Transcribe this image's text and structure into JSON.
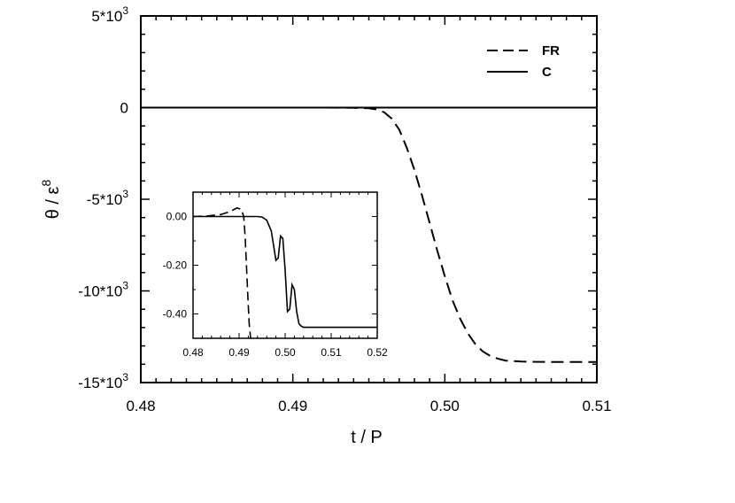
{
  "chart_data": [
    {
      "type": "line",
      "xlabel": "t / P",
      "ylabel": "θ / ε^8",
      "xlim": [
        0.48,
        0.51
      ],
      "ylim": [
        -15000,
        5000
      ],
      "x_ticks": [
        "0.48",
        "0.49",
        "0.50",
        "0.51"
      ],
      "y_ticks": [
        {
          "value": 5000,
          "base": "5*10",
          "exp": "3"
        },
        {
          "value": 0,
          "base": "0",
          "exp": ""
        },
        {
          "value": -5000,
          "base": "-5*10",
          "exp": "3"
        },
        {
          "value": -10000,
          "base": "-10*10",
          "exp": "3"
        },
        {
          "value": -15000,
          "base": "-15*10",
          "exp": "3"
        }
      ],
      "legend": "top-right",
      "series": [
        {
          "name": "FR",
          "style": "dashed",
          "x": [
            0.48,
            0.492,
            0.494,
            0.495,
            0.4955,
            0.496,
            0.4965,
            0.497,
            0.4975,
            0.498,
            0.4985,
            0.499,
            0.4995,
            0.5,
            0.5005,
            0.501,
            0.5015,
            0.502,
            0.5025,
            0.503,
            0.5035,
            0.504,
            0.505,
            0.506,
            0.508,
            0.51
          ],
          "y": [
            0,
            0,
            -10,
            -40,
            -100,
            -250,
            -600,
            -1200,
            -2200,
            -3400,
            -4800,
            -6300,
            -7800,
            -9200,
            -10500,
            -11500,
            -12300,
            -12900,
            -13300,
            -13550,
            -13700,
            -13800,
            -13850,
            -13870,
            -13880,
            -13880
          ]
        },
        {
          "name": "C",
          "style": "solid",
          "x": [
            0.48,
            0.51
          ],
          "y": [
            0,
            0
          ]
        }
      ]
    },
    {
      "type": "line",
      "inset": true,
      "xlim": [
        0.48,
        0.52
      ],
      "ylim": [
        -0.5,
        0.1
      ],
      "x_ticks": [
        "0.48",
        "0.49",
        "0.50",
        "0.51",
        "0.52"
      ],
      "y_ticks": [
        "0.00",
        "-0.20",
        "-0.40"
      ],
      "series": [
        {
          "name": "FR",
          "style": "dashed",
          "x": [
            0.48,
            0.483,
            0.486,
            0.488,
            0.4895,
            0.4905,
            0.491,
            0.4913,
            0.4916,
            0.4919,
            0.4922,
            0.4925
          ],
          "y": [
            0.0,
            0.002,
            0.008,
            0.02,
            0.035,
            0.03,
            0.0,
            -0.08,
            -0.2,
            -0.33,
            -0.44,
            -0.5
          ]
        },
        {
          "name": "C",
          "style": "solid",
          "x": [
            0.48,
            0.494,
            0.495,
            0.496,
            0.497,
            0.4975,
            0.498,
            0.4985,
            0.499,
            0.4995,
            0.5,
            0.5005,
            0.501,
            0.5015,
            0.502,
            0.5025,
            0.503,
            0.5035,
            0.504,
            0.505,
            0.507,
            0.52
          ],
          "y": [
            0.0,
            0.0,
            -0.002,
            -0.015,
            -0.06,
            -0.12,
            -0.18,
            -0.17,
            -0.08,
            -0.09,
            -0.22,
            -0.39,
            -0.38,
            -0.28,
            -0.3,
            -0.39,
            -0.44,
            -0.45,
            -0.455,
            -0.455,
            -0.455,
            -0.455
          ]
        }
      ]
    }
  ]
}
